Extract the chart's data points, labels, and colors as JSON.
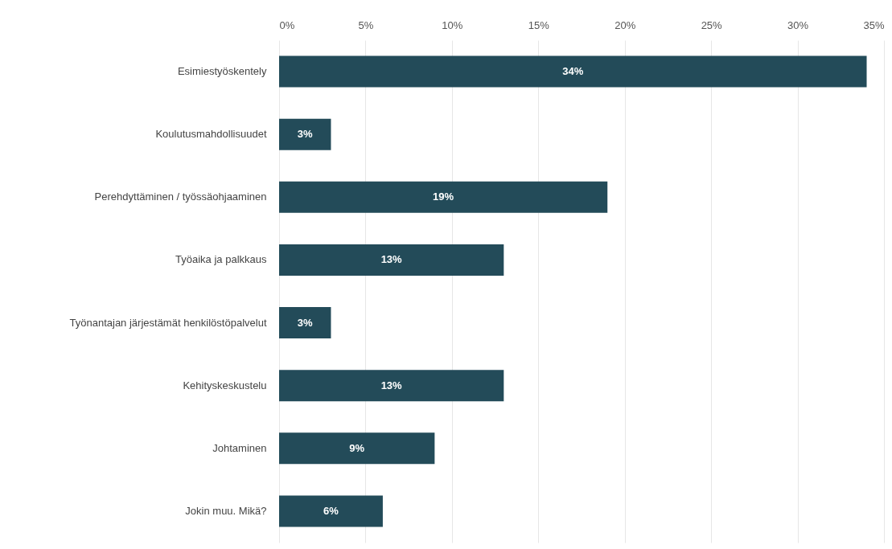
{
  "chart_data": {
    "type": "bar",
    "orientation": "horizontal",
    "categories": [
      "Esimiestyöskentely",
      "Koulutusmahdollisuudet",
      "Perehdyttäminen / työssäohjaaminen",
      "Työaika ja palkkaus",
      "Työnantajan järjestämät henkilöstöpalvelut",
      "Kehityskeskustelu",
      "Johtaminen",
      "Jokin muu. Mikä?"
    ],
    "values": [
      34,
      3,
      19,
      13,
      3,
      13,
      9,
      6
    ],
    "value_labels": [
      "34%",
      "3%",
      "19%",
      "13%",
      "3%",
      "13%",
      "9%",
      "6%"
    ],
    "color": "#234b59",
    "xlim": [
      0,
      35
    ],
    "xticks": [
      {
        "value": 0,
        "label": "0%"
      },
      {
        "value": 5,
        "label": "5%"
      },
      {
        "value": 10,
        "label": "10%"
      },
      {
        "value": 15,
        "label": "15%"
      },
      {
        "value": 20,
        "label": "20%"
      },
      {
        "value": 25,
        "label": "25%"
      },
      {
        "value": 30,
        "label": "30%"
      },
      {
        "value": 35,
        "label": "35%"
      }
    ],
    "grid": "x"
  }
}
